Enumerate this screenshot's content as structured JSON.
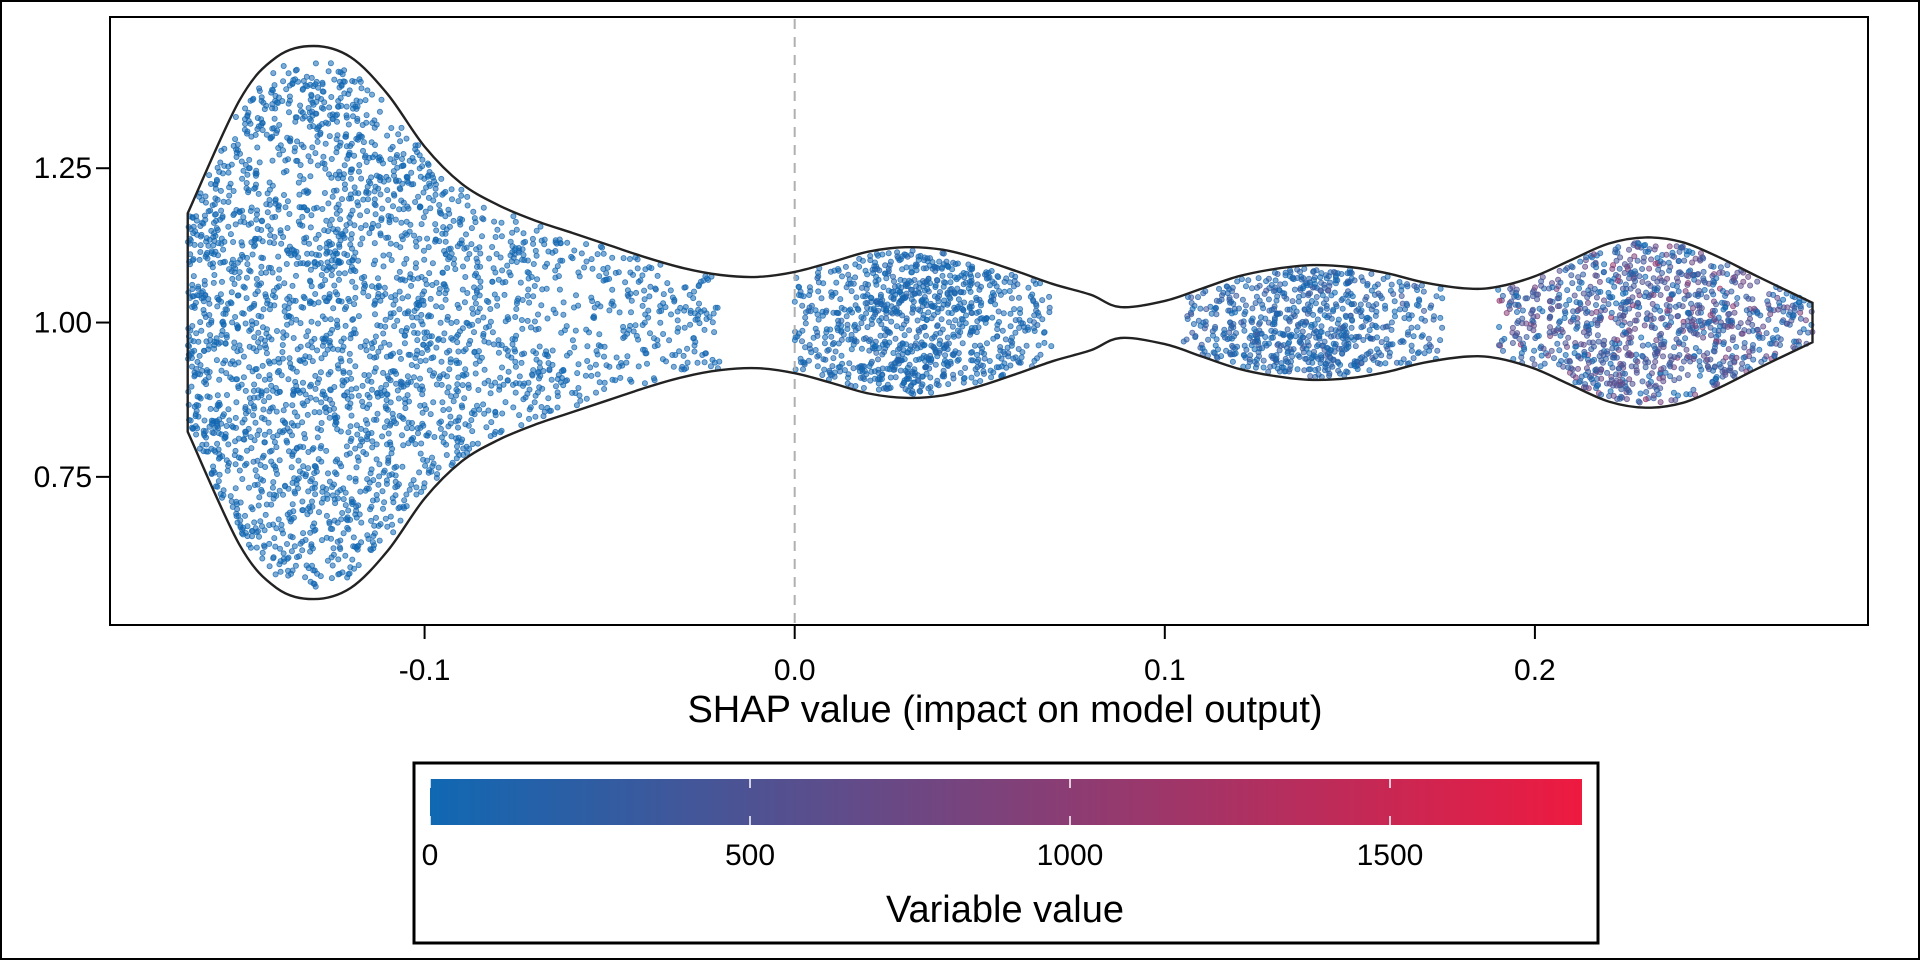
{
  "chart_data": {
    "type": "violin",
    "xlabel": "SHAP value (impact on model output)",
    "ylabel": "",
    "xlim": [
      -0.185,
      0.29
    ],
    "ylim": [
      0.51,
      1.495
    ],
    "x_ticks": [
      -0.1,
      0.0,
      0.1,
      0.2
    ],
    "x_tick_labels": [
      "-0.1",
      "0.0",
      "0.1",
      "0.2"
    ],
    "y_ticks": [
      0.75,
      1.0,
      1.25
    ],
    "y_tick_labels": [
      "0.75",
      "1.00",
      "1.25"
    ],
    "reference_line_x": 0.0,
    "violin": {
      "center": 1.0,
      "outline": [
        [
          -0.164,
          0.177
        ],
        [
          -0.15,
          0.36
        ],
        [
          -0.14,
          0.43
        ],
        [
          -0.13,
          0.448
        ],
        [
          -0.12,
          0.43
        ],
        [
          -0.11,
          0.37
        ],
        [
          -0.1,
          0.285
        ],
        [
          -0.09,
          0.225
        ],
        [
          -0.08,
          0.19
        ],
        [
          -0.07,
          0.165
        ],
        [
          -0.06,
          0.145
        ],
        [
          -0.05,
          0.125
        ],
        [
          -0.04,
          0.105
        ],
        [
          -0.03,
          0.088
        ],
        [
          -0.02,
          0.077
        ],
        [
          -0.01,
          0.074
        ],
        [
          0.0,
          0.082
        ],
        [
          0.01,
          0.098
        ],
        [
          0.02,
          0.115
        ],
        [
          0.03,
          0.122
        ],
        [
          0.04,
          0.118
        ],
        [
          0.05,
          0.103
        ],
        [
          0.06,
          0.083
        ],
        [
          0.07,
          0.062
        ],
        [
          0.08,
          0.045
        ],
        [
          0.088,
          0.025
        ],
        [
          0.1,
          0.035
        ],
        [
          0.11,
          0.055
        ],
        [
          0.12,
          0.075
        ],
        [
          0.13,
          0.087
        ],
        [
          0.14,
          0.093
        ],
        [
          0.15,
          0.09
        ],
        [
          0.16,
          0.08
        ],
        [
          0.17,
          0.065
        ],
        [
          0.182,
          0.055
        ],
        [
          0.19,
          0.058
        ],
        [
          0.2,
          0.075
        ],
        [
          0.21,
          0.102
        ],
        [
          0.22,
          0.128
        ],
        [
          0.23,
          0.138
        ],
        [
          0.24,
          0.13
        ],
        [
          0.25,
          0.105
        ],
        [
          0.26,
          0.075
        ],
        [
          0.275,
          0.032
        ]
      ],
      "clusters": [
        {
          "x_min": -0.164,
          "x_max": -0.02,
          "mean": -0.132,
          "sd": 0.03,
          "count": 2800,
          "color_value": 20
        },
        {
          "x_min": -0.0,
          "x_max": 0.07,
          "mean": 0.032,
          "sd": 0.017,
          "count": 900,
          "color_value": 60
        },
        {
          "x_min": 0.105,
          "x_max": 0.175,
          "mean": 0.14,
          "sd": 0.016,
          "count": 700,
          "color_value": 120
        },
        {
          "x_min": 0.19,
          "x_max": 0.275,
          "mean": 0.23,
          "sd": 0.02,
          "count": 1000,
          "color_value": 320
        }
      ]
    },
    "colorbar": {
      "title": "Variable value",
      "min": 0,
      "max": 1800,
      "ticks": [
        0,
        500,
        1000,
        1500
      ],
      "tick_labels": [
        "0",
        "500",
        "1000",
        "1500"
      ],
      "color_low": "#1068b3",
      "color_high": "#ee1a40"
    },
    "outline_color": "#222222",
    "reference_line_color": "#b0b0b0"
  }
}
